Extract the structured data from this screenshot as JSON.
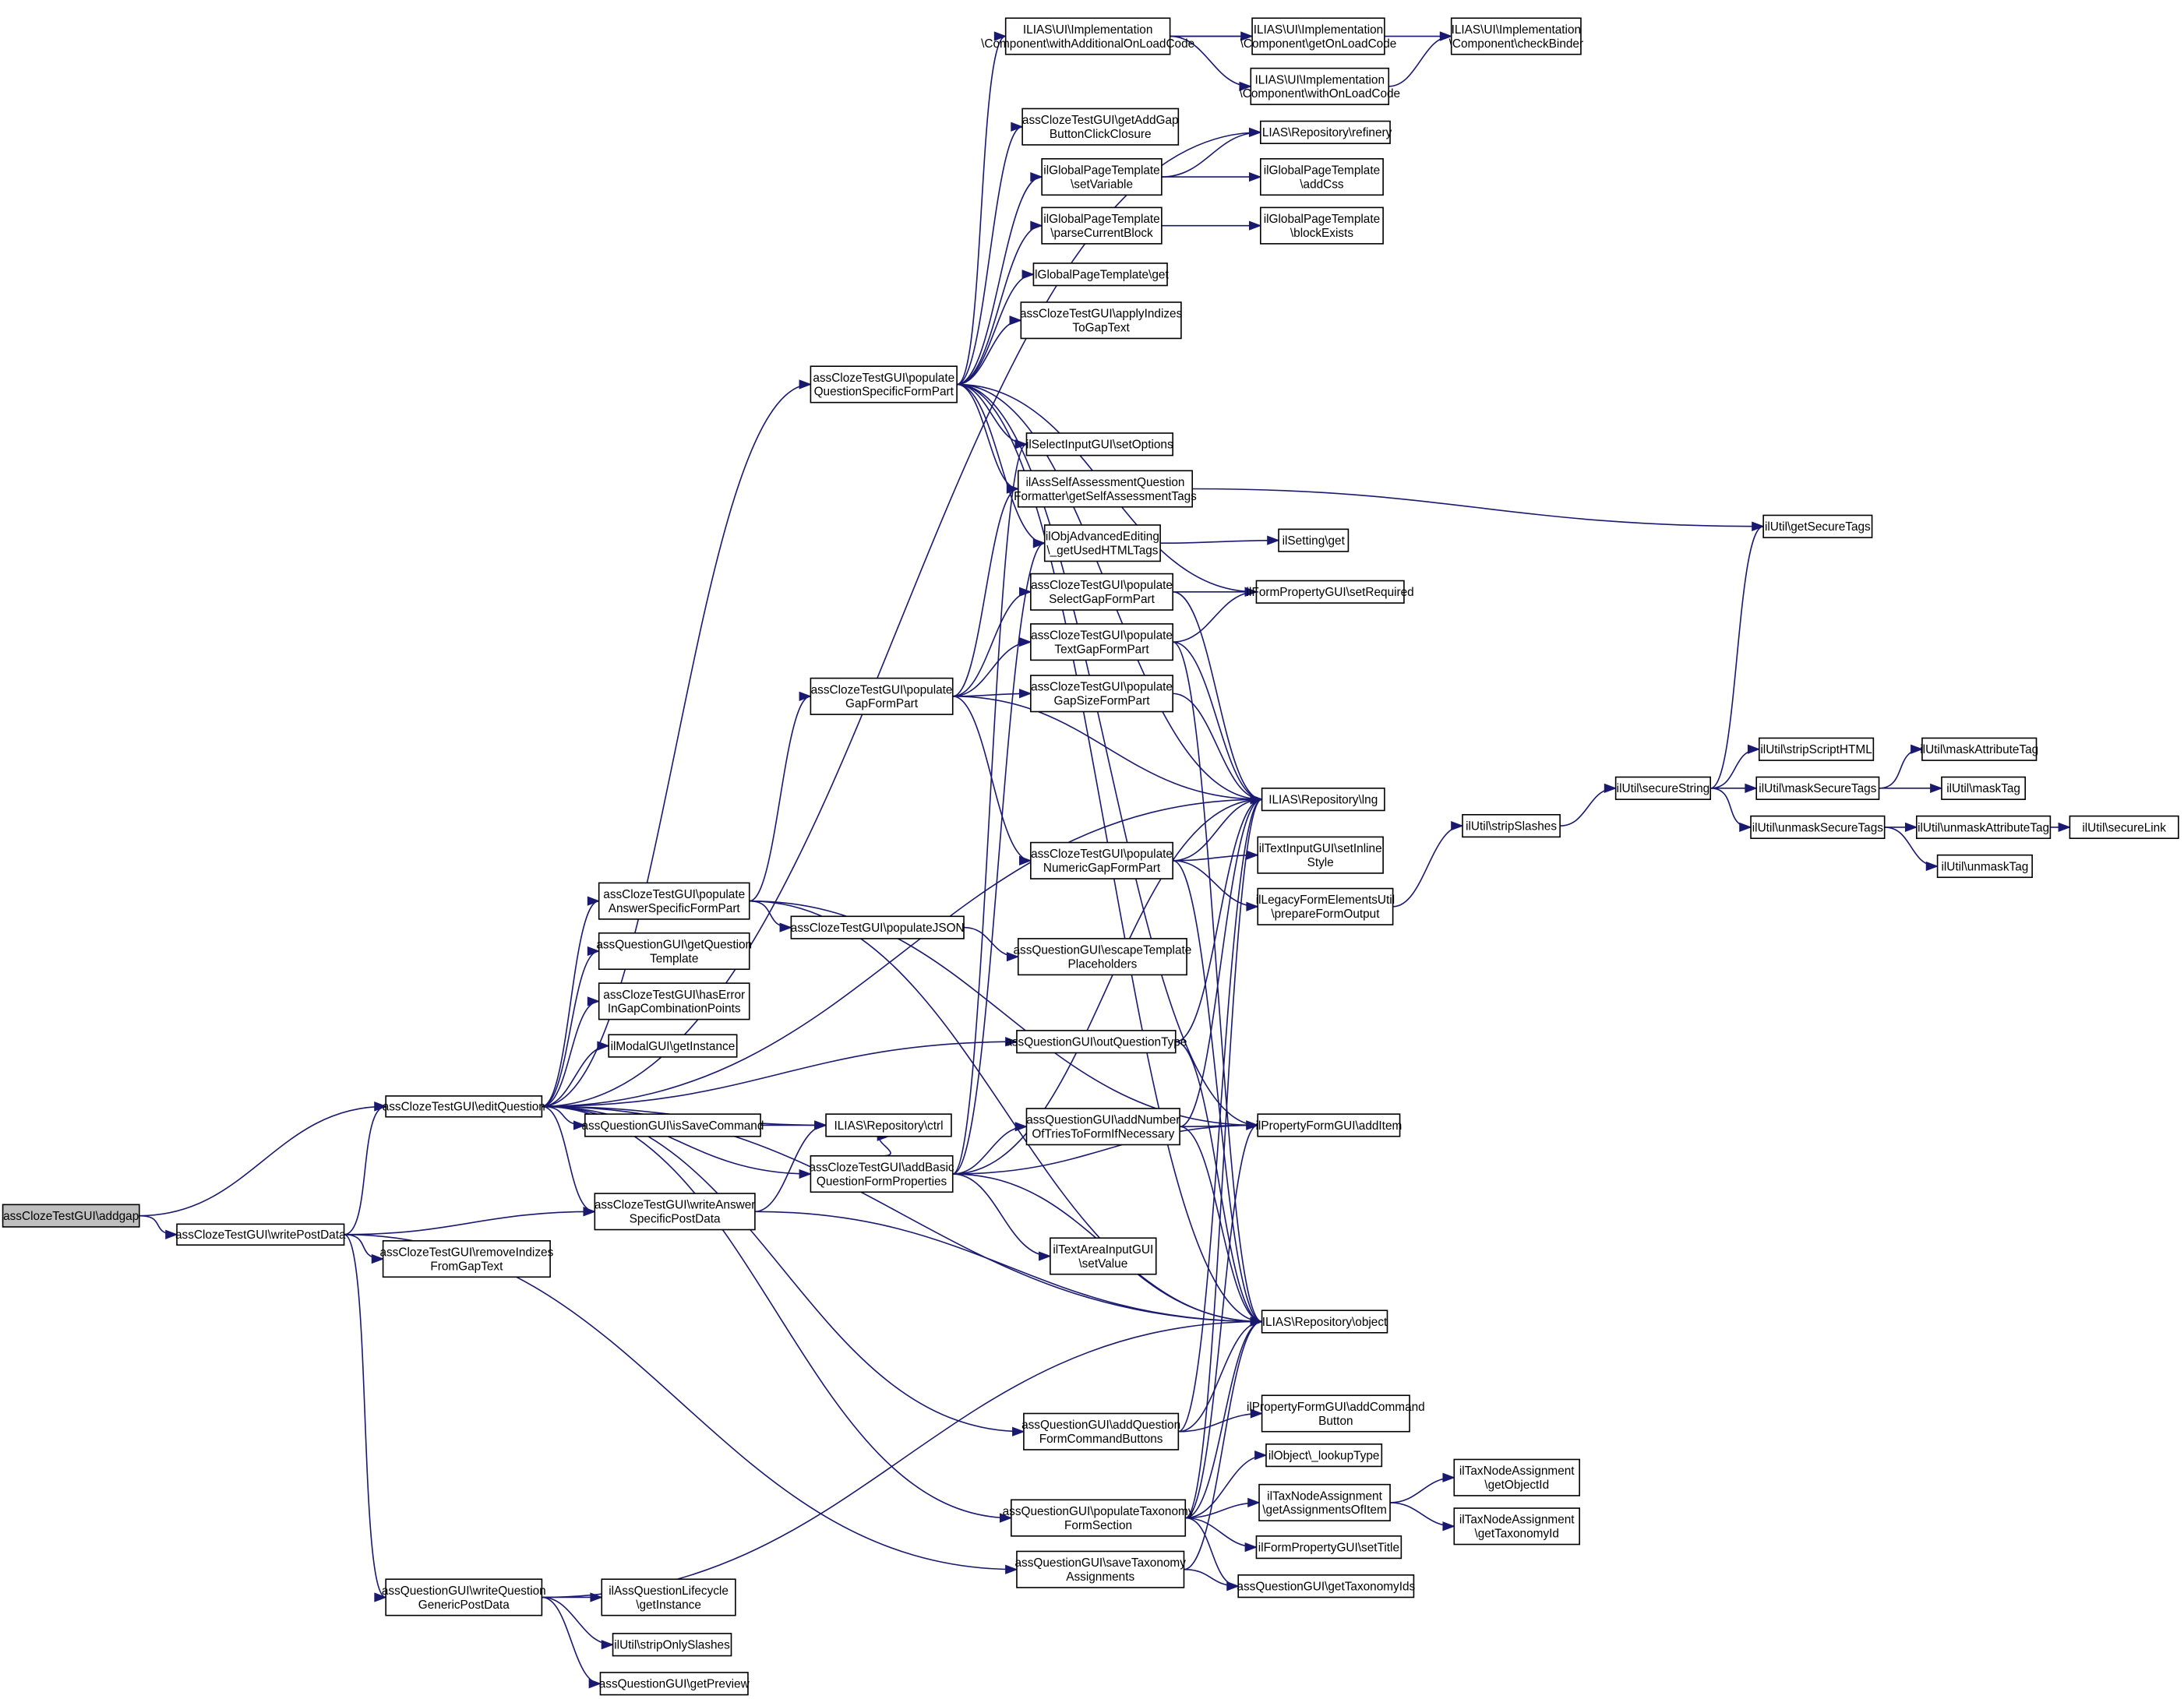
{
  "diagram": {
    "type": "call-graph",
    "colors": {
      "edge": "#191970",
      "root_fill": "#bfbfbf",
      "node_fill": "#ffffff",
      "node_border": "#000000"
    },
    "nodes": [
      {
        "lines": [
          "assClozeTestGUI\\addgap"
        ]
      },
      {
        "lines": [
          "assClozeTestGUI\\editQuestion"
        ]
      },
      {
        "lines": [
          "assClozeTestGUI\\writePostData"
        ]
      },
      {
        "lines": [
          "ILIAS\\UI\\Implementation",
          "\\Component\\withAdditionalOnLoadCode"
        ]
      },
      {
        "lines": [
          "ILIAS\\UI\\Implementation",
          "\\Component\\getOnLoadCode"
        ]
      },
      {
        "lines": [
          "ILIAS\\UI\\Implementation",
          "\\Component\\checkBinder"
        ]
      },
      {
        "lines": [
          "ILIAS\\UI\\Implementation",
          "\\Component\\withOnLoadCode"
        ]
      },
      {
        "lines": [
          "ILIAS\\Repository\\refinery"
        ]
      },
      {
        "lines": [
          "assClozeTestGUI\\getAddGap",
          "ButtonClickClosure"
        ]
      },
      {
        "lines": [
          "ilGlobalPageTemplate",
          "\\setVariable"
        ]
      },
      {
        "lines": [
          "ilGlobalPageTemplate",
          "\\addCss"
        ]
      },
      {
        "lines": [
          "ilGlobalPageTemplate",
          "\\parseCurrentBlock"
        ]
      },
      {
        "lines": [
          "ilGlobalPageTemplate",
          "\\blockExists"
        ]
      },
      {
        "lines": [
          "ilGlobalPageTemplate\\get"
        ]
      },
      {
        "lines": [
          "assClozeTestGUI\\applyIndizes",
          "ToGapText"
        ]
      },
      {
        "lines": [
          "assClozeTestGUI\\populate",
          "QuestionSpecificFormPart"
        ]
      },
      {
        "lines": [
          "ilSelectInputGUI\\setOptions"
        ]
      },
      {
        "lines": [
          "ilAssSelfAssessmentQuestion",
          "Formatter\\getSelfAssessmentTags"
        ]
      },
      {
        "lines": [
          "ilObjAdvancedEditing",
          "\\_getUsedHTMLTags"
        ]
      },
      {
        "lines": [
          "ilSetting\\get"
        ]
      },
      {
        "lines": [
          "assClozeTestGUI\\populate",
          "SelectGapFormPart"
        ]
      },
      {
        "lines": [
          "ilFormPropertyGUI\\setRequired"
        ]
      },
      {
        "lines": [
          "ilUtil\\getSecureTags"
        ]
      },
      {
        "lines": [
          "assClozeTestGUI\\populate",
          "TextGapFormPart"
        ]
      },
      {
        "lines": [
          "assClozeTestGUI\\populate",
          "GapFormPart"
        ]
      },
      {
        "lines": [
          "assClozeTestGUI\\populate",
          "GapSizeFormPart"
        ]
      },
      {
        "lines": [
          "ILIAS\\Repository\\lng"
        ]
      },
      {
        "lines": [
          "ilUtil\\stripSlashes"
        ]
      },
      {
        "lines": [
          "ilUtil\\secureString"
        ]
      },
      {
        "lines": [
          "ilUtil\\stripScriptHTML"
        ]
      },
      {
        "lines": [
          "ilUtil\\maskSecureTags"
        ]
      },
      {
        "lines": [
          "ilUtil\\maskAttributeTag"
        ]
      },
      {
        "lines": [
          "ilUtil\\maskTag"
        ]
      },
      {
        "lines": [
          "ilUtil\\unmaskSecureTags"
        ]
      },
      {
        "lines": [
          "ilUtil\\unmaskAttributeTag"
        ]
      },
      {
        "lines": [
          "ilUtil\\secureLink"
        ]
      },
      {
        "lines": [
          "ilUtil\\unmaskTag"
        ]
      },
      {
        "lines": [
          "assClozeTestGUI\\populate",
          "NumericGapFormPart"
        ]
      },
      {
        "lines": [
          "ilTextInputGUI\\setInline",
          "Style"
        ]
      },
      {
        "lines": [
          "ilLegacyFormElementsUtil",
          "\\prepareFormOutput"
        ]
      },
      {
        "lines": [
          "assClozeTestGUI\\populate",
          "AnswerSpecificFormPart"
        ]
      },
      {
        "lines": [
          "assClozeTestGUI\\populateJSON"
        ]
      },
      {
        "lines": [
          "assQuestionGUI\\escapeTemplate",
          "Placeholders"
        ]
      },
      {
        "lines": [
          "assQuestionGUI\\getQuestion",
          "Template"
        ]
      },
      {
        "lines": [
          "assClozeTestGUI\\hasError",
          "InGapCombinationPoints"
        ]
      },
      {
        "lines": [
          "ilModalGUI\\getInstance"
        ]
      },
      {
        "lines": [
          "assQuestionGUI\\outQuestionType"
        ]
      },
      {
        "lines": [
          "assQuestionGUI\\isSaveCommand"
        ]
      },
      {
        "lines": [
          "ILIAS\\Repository\\ctrl"
        ]
      },
      {
        "lines": [
          "assQuestionGUI\\addNumber",
          "OfTriesToFormIfNecessary"
        ]
      },
      {
        "lines": [
          "ilPropertyFormGUI\\addItem"
        ]
      },
      {
        "lines": [
          "assClozeTestGUI\\addBasic",
          "QuestionFormProperties"
        ]
      },
      {
        "lines": [
          "assClozeTestGUI\\writeAnswer",
          "SpecificPostData"
        ]
      },
      {
        "lines": [
          "assClozeTestGUI\\removeIndizes",
          "FromGapText"
        ]
      },
      {
        "lines": [
          "ilTextAreaInputGUI",
          "\\setValue"
        ]
      },
      {
        "lines": [
          "ILIAS\\Repository\\object"
        ]
      },
      {
        "lines": [
          "assQuestionGUI\\addQuestion",
          "FormCommandButtons"
        ]
      },
      {
        "lines": [
          "ilPropertyFormGUI\\addCommand",
          "Button"
        ]
      },
      {
        "lines": [
          "ilObject\\_lookupType"
        ]
      },
      {
        "lines": [
          "assQuestionGUI\\populateTaxonomy",
          "FormSection"
        ]
      },
      {
        "lines": [
          "ilTaxNodeAssignment",
          "\\getAssignmentsOfItem"
        ]
      },
      {
        "lines": [
          "ilTaxNodeAssignment",
          "\\getObjectId"
        ]
      },
      {
        "lines": [
          "ilTaxNodeAssignment",
          "\\getTaxonomyId"
        ]
      },
      {
        "lines": [
          "ilFormPropertyGUI\\setTitle"
        ]
      },
      {
        "lines": [
          "assQuestionGUI\\saveTaxonomy",
          "Assignments"
        ]
      },
      {
        "lines": [
          "assQuestionGUI\\getTaxonomyIds"
        ]
      },
      {
        "lines": [
          "assQuestionGUI\\writeQuestion",
          "GenericPostData"
        ]
      },
      {
        "lines": [
          "ilAssQuestionLifecycle",
          "\\getInstance"
        ]
      },
      {
        "lines": [
          "ilUtil\\stripOnlySlashes"
        ]
      },
      {
        "lines": [
          "assQuestionGUI\\getPreview"
        ]
      }
    ],
    "edges": [
      [
        0,
        1
      ],
      [
        0,
        2
      ],
      [
        2,
        1
      ],
      [
        2,
        52
      ],
      [
        2,
        53
      ],
      [
        2,
        66
      ],
      [
        2,
        64
      ],
      [
        1,
        15
      ],
      [
        1,
        40
      ],
      [
        1,
        43
      ],
      [
        1,
        44
      ],
      [
        1,
        45
      ],
      [
        1,
        46
      ],
      [
        1,
        47
      ],
      [
        1,
        48
      ],
      [
        1,
        26
      ],
      [
        1,
        51
      ],
      [
        1,
        52
      ],
      [
        1,
        56
      ],
      [
        1,
        59
      ],
      [
        1,
        7
      ],
      [
        1,
        55
      ],
      [
        15,
        3
      ],
      [
        15,
        8
      ],
      [
        15,
        9
      ],
      [
        15,
        11
      ],
      [
        15,
        13
      ],
      [
        15,
        14
      ],
      [
        15,
        16
      ],
      [
        15,
        17
      ],
      [
        15,
        18
      ],
      [
        15,
        21
      ],
      [
        15,
        26
      ],
      [
        15,
        55
      ],
      [
        15,
        50
      ],
      [
        3,
        4
      ],
      [
        3,
        5
      ],
      [
        3,
        6
      ],
      [
        6,
        5
      ],
      [
        9,
        7
      ],
      [
        9,
        10
      ],
      [
        11,
        12
      ],
      [
        17,
        22
      ],
      [
        18,
        19
      ],
      [
        24,
        17
      ],
      [
        24,
        20
      ],
      [
        24,
        23
      ],
      [
        24,
        25
      ],
      [
        24,
        37
      ],
      [
        24,
        26
      ],
      [
        20,
        21
      ],
      [
        20,
        26
      ],
      [
        23,
        21
      ],
      [
        23,
        26
      ],
      [
        23,
        55
      ],
      [
        25,
        26
      ],
      [
        37,
        26
      ],
      [
        37,
        38
      ],
      [
        37,
        39
      ],
      [
        37,
        55
      ],
      [
        39,
        27
      ],
      [
        27,
        28
      ],
      [
        28,
        22
      ],
      [
        28,
        29
      ],
      [
        28,
        30
      ],
      [
        28,
        33
      ],
      [
        30,
        31
      ],
      [
        30,
        32
      ],
      [
        33,
        34
      ],
      [
        33,
        36
      ],
      [
        34,
        35
      ],
      [
        40,
        24
      ],
      [
        40,
        41
      ],
      [
        40,
        50
      ],
      [
        40,
        55
      ],
      [
        41,
        42
      ],
      [
        46,
        26
      ],
      [
        46,
        55
      ],
      [
        47,
        48
      ],
      [
        49,
        26
      ],
      [
        49,
        50
      ],
      [
        49,
        55
      ],
      [
        51,
        16
      ],
      [
        51,
        18
      ],
      [
        51,
        48
      ],
      [
        51,
        49
      ],
      [
        51,
        50
      ],
      [
        51,
        54
      ],
      [
        51,
        55
      ],
      [
        51,
        26
      ],
      [
        52,
        48
      ],
      [
        52,
        55
      ],
      [
        56,
        57
      ],
      [
        56,
        55
      ],
      [
        56,
        26
      ],
      [
        59,
        58
      ],
      [
        59,
        60
      ],
      [
        59,
        63
      ],
      [
        59,
        65
      ],
      [
        59,
        55
      ],
      [
        59,
        26
      ],
      [
        59,
        50
      ],
      [
        60,
        61
      ],
      [
        60,
        62
      ],
      [
        64,
        65
      ],
      [
        64,
        55
      ],
      [
        66,
        55
      ],
      [
        66,
        67
      ],
      [
        66,
        68
      ],
      [
        66,
        69
      ]
    ]
  }
}
